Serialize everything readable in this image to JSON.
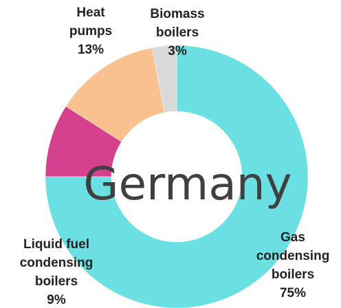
{
  "chart_data": {
    "type": "donut",
    "title": "Germany",
    "categories": [
      "Gas condensing boilers",
      "Liquid fuel condensing boilers",
      "Heat pumps",
      "Biomass boilers"
    ],
    "values": [
      75,
      9,
      13,
      3
    ],
    "value_labels": [
      "75%",
      "9%",
      "13%",
      "3%"
    ],
    "colors": [
      "#6be0e3",
      "#d6418f",
      "#f9c18f",
      "#d9d9d9"
    ]
  }
}
